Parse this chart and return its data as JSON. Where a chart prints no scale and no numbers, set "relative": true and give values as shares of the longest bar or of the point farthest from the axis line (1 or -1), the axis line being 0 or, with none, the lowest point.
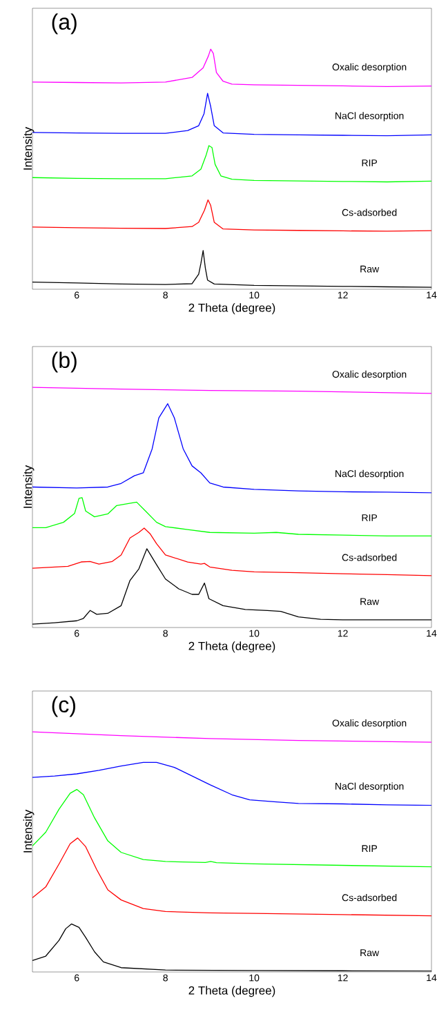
{
  "chart_data": [
    {
      "type": "line",
      "title": "(a)",
      "xlabel": "2 Theta (degree)",
      "ylabel": "Intensity",
      "xlim": [
        5,
        14
      ],
      "xticks": [
        6,
        8,
        10,
        12,
        14
      ],
      "relative": true,
      "tick_labels": "x",
      "legend": false,
      "series": [
        {
          "name": "Raw",
          "color": "#000000",
          "x": [
            5,
            6,
            7,
            8,
            8.6,
            8.75,
            8.8,
            8.85,
            8.9,
            8.95,
            9.1,
            10,
            11,
            12,
            13,
            14
          ],
          "values": [
            0.03,
            0.026,
            0.022,
            0.02,
            0.023,
            0.063,
            0.108,
            0.161,
            0.088,
            0.038,
            0.022,
            0.016,
            0.014,
            0.012,
            0.01,
            0.008
          ]
        },
        {
          "name": "Cs-adsorbed",
          "color": "#ff0000",
          "x": [
            5,
            6,
            7,
            8,
            8.6,
            8.75,
            8.88,
            8.96,
            9.02,
            9.1,
            9.3,
            10,
            11,
            12,
            13,
            14
          ],
          "values": [
            0.259,
            0.256,
            0.254,
            0.253,
            0.261,
            0.279,
            0.329,
            0.372,
            0.349,
            0.279,
            0.251,
            0.247,
            0.245,
            0.243,
            0.242,
            0.244
          ]
        },
        {
          "name": "RIP",
          "color": "#00ff00",
          "x": [
            5,
            6,
            7,
            8,
            8.6,
            8.8,
            8.92,
            8.98,
            9.05,
            9.12,
            9.25,
            9.5,
            10,
            11,
            12,
            13,
            14
          ],
          "values": [
            0.465,
            0.462,
            0.46,
            0.46,
            0.472,
            0.5,
            0.56,
            0.598,
            0.59,
            0.52,
            0.472,
            0.458,
            0.453,
            0.451,
            0.449,
            0.447,
            0.45
          ]
        },
        {
          "name": "NaCl desorption",
          "color": "#0000ff",
          "x": [
            5,
            6,
            7,
            8,
            8.5,
            8.75,
            8.87,
            8.95,
            9.02,
            9.1,
            9.3,
            10,
            11,
            12,
            13,
            14
          ],
          "values": [
            0.653,
            0.651,
            0.649,
            0.649,
            0.661,
            0.681,
            0.731,
            0.816,
            0.761,
            0.681,
            0.651,
            0.645,
            0.643,
            0.641,
            0.639,
            0.643
          ]
        },
        {
          "name": "Oxalic desorption",
          "color": "#ff00ff",
          "x": [
            5,
            6,
            7,
            8,
            8.6,
            8.85,
            8.97,
            9.02,
            9.08,
            9.15,
            9.3,
            9.5,
            10,
            11,
            12,
            13,
            14
          ],
          "values": [
            0.863,
            0.861,
            0.859,
            0.863,
            0.882,
            0.922,
            0.972,
            1.0,
            0.982,
            0.902,
            0.866,
            0.854,
            0.851,
            0.849,
            0.847,
            0.844,
            0.846
          ]
        }
      ]
    },
    {
      "type": "line",
      "title": "(b)",
      "xlabel": "2 Theta (degree)",
      "ylabel": "Intensity",
      "xlim": [
        5,
        14
      ],
      "xticks": [
        6,
        8,
        10,
        12,
        14
      ],
      "relative": true,
      "tick_labels": "x",
      "legend": false,
      "series": [
        {
          "name": "Raw",
          "color": "#000000",
          "x": [
            5,
            5.5,
            6,
            6.15,
            6.3,
            6.45,
            6.7,
            7,
            7.2,
            7.4,
            7.58,
            7.8,
            8,
            8.3,
            8.6,
            8.75,
            8.88,
            8.98,
            9.3,
            9.8,
            10.3,
            10.6,
            11,
            11.5,
            12,
            13,
            14
          ],
          "values": [
            0.014,
            0.02,
            0.028,
            0.038,
            0.071,
            0.055,
            0.059,
            0.091,
            0.196,
            0.244,
            0.328,
            0.261,
            0.202,
            0.161,
            0.138,
            0.138,
            0.185,
            0.12,
            0.091,
            0.075,
            0.071,
            0.067,
            0.044,
            0.034,
            0.032,
            0.032,
            0.032
          ]
        },
        {
          "name": "Cs-adsorbed",
          "color": "#ff0000",
          "x": [
            5,
            5.8,
            6.1,
            6.3,
            6.5,
            6.8,
            7,
            7.2,
            7.4,
            7.52,
            7.65,
            7.8,
            8,
            8.5,
            8.8,
            8.88,
            9,
            9.5,
            10,
            11,
            12,
            13,
            14
          ],
          "values": [
            0.247,
            0.255,
            0.273,
            0.275,
            0.264,
            0.275,
            0.302,
            0.373,
            0.396,
            0.414,
            0.391,
            0.349,
            0.302,
            0.273,
            0.264,
            0.267,
            0.252,
            0.238,
            0.232,
            0.228,
            0.224,
            0.22,
            0.216
          ]
        },
        {
          "name": "RIP",
          "color": "#00ff00",
          "x": [
            5,
            5.3,
            5.7,
            5.95,
            6.05,
            6.12,
            6.2,
            6.4,
            6.7,
            6.9,
            7.1,
            7.35,
            7.55,
            7.8,
            8,
            8.5,
            9,
            10,
            10.5,
            11,
            12,
            13,
            14
          ],
          "values": [
            0.416,
            0.416,
            0.438,
            0.475,
            0.538,
            0.541,
            0.485,
            0.461,
            0.473,
            0.508,
            0.514,
            0.522,
            0.485,
            0.438,
            0.42,
            0.408,
            0.396,
            0.393,
            0.396,
            0.388,
            0.385,
            0.381,
            0.381
          ]
        },
        {
          "name": "NaCl desorption",
          "color": "#0000ff",
          "x": [
            5,
            6,
            6.7,
            7,
            7.3,
            7.5,
            7.7,
            7.85,
            8.05,
            8.2,
            8.4,
            8.6,
            8.8,
            9,
            9.3,
            10,
            11,
            12,
            13,
            14
          ],
          "values": [
            0.585,
            0.581,
            0.585,
            0.6,
            0.632,
            0.644,
            0.744,
            0.873,
            0.932,
            0.873,
            0.744,
            0.673,
            0.644,
            0.602,
            0.585,
            0.575,
            0.569,
            0.565,
            0.564,
            0.561
          ]
        },
        {
          "name": "Oxalic desorption",
          "color": "#ff00ff",
          "x": [
            5,
            7,
            9,
            11,
            14
          ],
          "values": [
            1.0,
            0.993,
            0.987,
            0.984,
            0.975
          ]
        }
      ]
    },
    {
      "type": "line",
      "title": "(c)",
      "xlabel": "2 Theta (degree)",
      "ylabel": "Intensity",
      "xlim": [
        5,
        14
      ],
      "xticks": [
        6,
        8,
        10,
        12,
        14
      ],
      "relative": true,
      "tick_labels": "x",
      "legend": false,
      "series": [
        {
          "name": "Raw",
          "color": "#000000",
          "x": [
            5,
            5.3,
            5.6,
            5.75,
            5.88,
            6.05,
            6.2,
            6.4,
            6.6,
            7,
            8,
            10,
            12,
            14
          ],
          "values": [
            0.048,
            0.066,
            0.132,
            0.18,
            0.2,
            0.186,
            0.144,
            0.084,
            0.042,
            0.018,
            0.008,
            0.006,
            0.005,
            0.004
          ]
        },
        {
          "name": "Cs-adsorbed",
          "color": "#ff0000",
          "x": [
            5,
            5.3,
            5.6,
            5.85,
            6.02,
            6.2,
            6.45,
            6.7,
            7,
            7.5,
            8,
            9,
            10,
            12,
            14
          ],
          "values": [
            0.309,
            0.354,
            0.45,
            0.534,
            0.558,
            0.522,
            0.426,
            0.342,
            0.3,
            0.264,
            0.252,
            0.246,
            0.244,
            0.239,
            0.234
          ]
        },
        {
          "name": "RIP",
          "color": "#00ff00",
          "x": [
            5,
            5.3,
            5.6,
            5.85,
            6,
            6.15,
            6.4,
            6.7,
            7,
            7.5,
            8,
            8.9,
            9.02,
            9.15,
            10,
            12,
            14
          ],
          "values": [
            0.525,
            0.582,
            0.678,
            0.744,
            0.76,
            0.738,
            0.642,
            0.546,
            0.498,
            0.468,
            0.46,
            0.456,
            0.46,
            0.455,
            0.45,
            0.444,
            0.438
          ]
        },
        {
          "name": "NaCl desorption",
          "color": "#0000ff",
          "x": [
            5,
            5.5,
            6,
            6.5,
            7,
            7.5,
            7.8,
            8.2,
            8.6,
            9,
            9.5,
            9.9,
            10.5,
            11,
            12,
            13,
            14
          ],
          "values": [
            0.81,
            0.816,
            0.825,
            0.84,
            0.858,
            0.873,
            0.873,
            0.852,
            0.816,
            0.78,
            0.738,
            0.717,
            0.708,
            0.702,
            0.7,
            0.696,
            0.694
          ]
        },
        {
          "name": "Oxalic desorption",
          "color": "#ff00ff",
          "x": [
            5,
            7,
            9,
            11,
            14
          ],
          "values": [
            1.0,
            0.984,
            0.972,
            0.964,
            0.957
          ]
        }
      ]
    }
  ]
}
